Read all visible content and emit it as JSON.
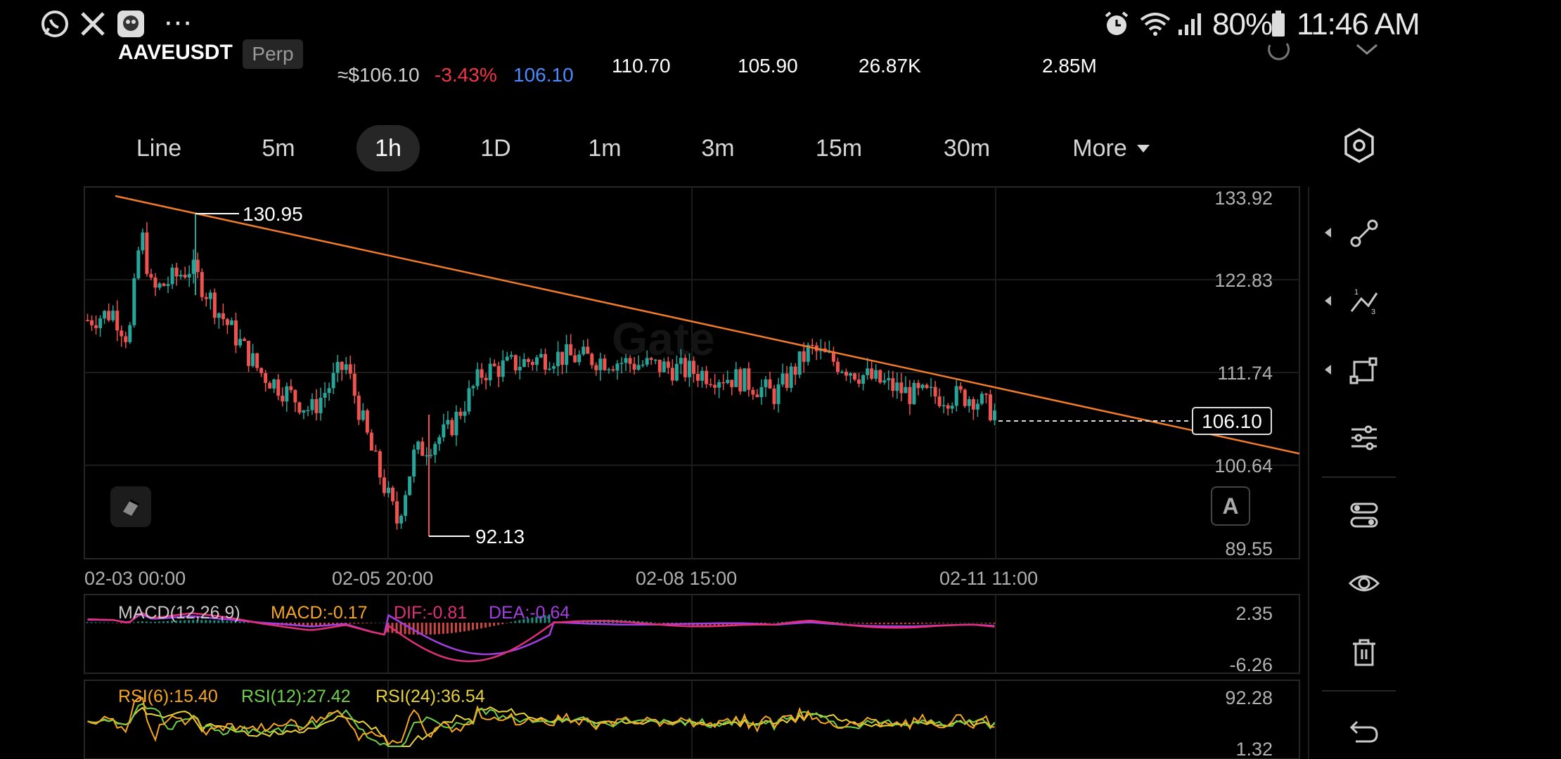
{
  "status_bar": {
    "battery": "80%",
    "time": "11:46 AM",
    "more_dots": "···",
    "icons": [
      "whatsapp-icon",
      "x-icon",
      "app-icon",
      "alarm-icon",
      "wifi-icon",
      "signal-icon",
      "battery-icon"
    ]
  },
  "header": {
    "pair": "AAVEUSDT",
    "contract_badge": "Perp",
    "approx_price": "≈$106.10",
    "change_pct": "-3.43%",
    "mark_price": "106.10",
    "high_24h": "110.70",
    "low_24h": "105.90",
    "volume_base": "26.87K",
    "volume_quote": "2.85M",
    "colors": {
      "negative": "#f23645",
      "mark": "#4a8cff"
    }
  },
  "intervals": {
    "items": [
      "Line",
      "5m",
      "1h",
      "1D",
      "1m",
      "3m",
      "15m",
      "30m",
      "More"
    ],
    "active": "1h"
  },
  "chart_data": {
    "type": "candlestick",
    "price_axis_ticks": [
      "133.92",
      "122.83",
      "111.74",
      "100.64",
      "89.55"
    ],
    "time_axis_ticks": [
      "02-03 00:00",
      "02-05 20:00",
      "02-08 15:00",
      "02-11 11:00"
    ],
    "high_marker": "130.95",
    "low_marker": "92.13",
    "last_price": "106.10",
    "ylim": [
      89.55,
      133.92
    ],
    "trendline": {
      "from": [
        0,
        134.2
      ],
      "to": [
        1,
        101.6
      ]
    },
    "watermark": "Gate",
    "colors": {
      "up": "#26a69a",
      "down": "#ef5350",
      "trendline": "#f07b2a"
    },
    "macd": {
      "label": "MACD(12,26,9)",
      "macd": "MACD:-0.17",
      "dif": "DIF:-0.81",
      "dea": "DEA:-0.64",
      "axis_ticks": [
        "2.35",
        "-6.26"
      ],
      "colors": {
        "macd": "#f5a623",
        "dif": "#e0307a",
        "dea": "#a33fe0"
      }
    },
    "rsi": {
      "rsi6": "RSI(6):15.40",
      "rsi12": "RSI(12):27.42",
      "rsi24": "RSI(24):36.54",
      "axis_ticks": [
        "92.28",
        "1.32"
      ],
      "colors": {
        "rsi6": "#f5a623",
        "rsi12": "#6fd04a",
        "rsi24": "#e8d23a"
      }
    }
  },
  "chart_controls": {
    "auto_button": "A"
  },
  "right_toolbar": [
    "line-tool-icon",
    "fib-tool-icon",
    "shape-tool-icon",
    "indicator-settings-icon",
    "adjust-icon",
    "visibility-icon",
    "delete-icon",
    "undo-icon"
  ]
}
